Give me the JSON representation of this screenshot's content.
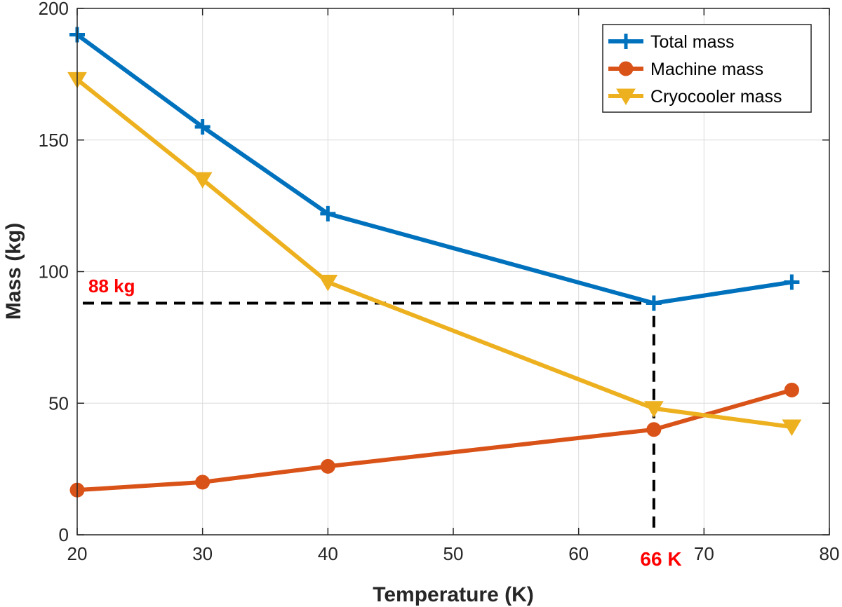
{
  "chart_data": {
    "type": "line",
    "xlabel": "Temperature (K)",
    "ylabel": "Mass (kg)",
    "xlim": [
      20,
      80
    ],
    "ylim": [
      0,
      200
    ],
    "xticks": [
      "20",
      "30",
      "40",
      "50",
      "60",
      "70",
      "80"
    ],
    "yticks": [
      "0",
      "50",
      "100",
      "150",
      "200"
    ],
    "grid": true,
    "legend_position": "top-right",
    "series": [
      {
        "name": "Total mass",
        "color": "#0072BD",
        "marker": "plus",
        "x": [
          20,
          30,
          40,
          66,
          77
        ],
        "y": [
          190,
          155,
          122,
          88,
          96
        ]
      },
      {
        "name": "Machine mass",
        "color": "#D95319",
        "marker": "circle",
        "x": [
          20,
          30,
          40,
          66,
          77
        ],
        "y": [
          17,
          20,
          26,
          40,
          55
        ]
      },
      {
        "name": "Cryocooler mass",
        "color": "#EDB120",
        "marker": "triangle-down",
        "x": [
          20,
          30,
          40,
          66,
          77
        ],
        "y": [
          173,
          135,
          96,
          48,
          41
        ]
      }
    ],
    "annotations": {
      "color": "#FF0000",
      "mass_label": "88 kg",
      "temp_label": "66 K",
      "ref_x": 66,
      "ref_y": 88
    }
  }
}
